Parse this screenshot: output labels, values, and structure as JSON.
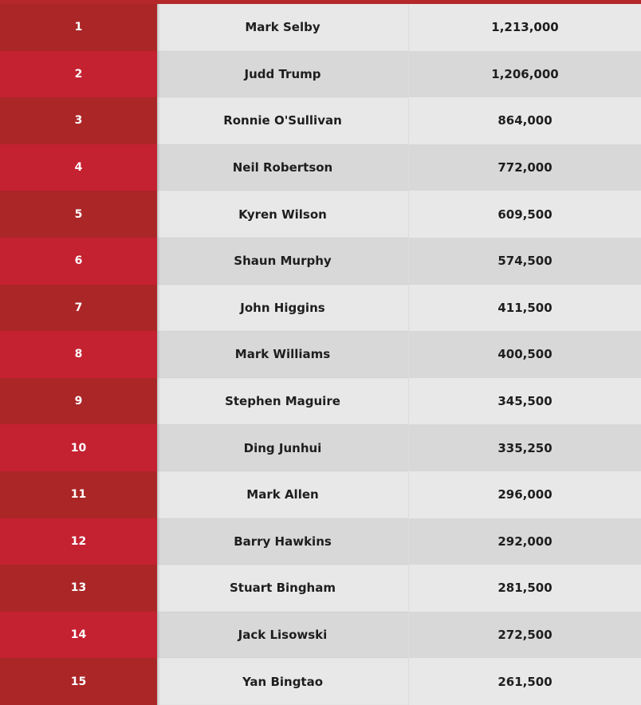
{
  "colors": {
    "rank_odd": "#ab2627",
    "rank_even": "#c42131",
    "row_odd": "#e8e8e8",
    "row_even": "#d8d8d8",
    "top_border": "#b5272a"
  },
  "rows": [
    {
      "rank": "1",
      "name": "Mark Selby",
      "prize": "1,213,000"
    },
    {
      "rank": "2",
      "name": "Judd Trump",
      "prize": "1,206,000"
    },
    {
      "rank": "3",
      "name": "Ronnie O'Sullivan",
      "prize": "864,000"
    },
    {
      "rank": "4",
      "name": "Neil Robertson",
      "prize": "772,000"
    },
    {
      "rank": "5",
      "name": "Kyren Wilson",
      "prize": "609,500"
    },
    {
      "rank": "6",
      "name": "Shaun Murphy",
      "prize": "574,500"
    },
    {
      "rank": "7",
      "name": "John Higgins",
      "prize": "411,500"
    },
    {
      "rank": "8",
      "name": "Mark Williams",
      "prize": "400,500"
    },
    {
      "rank": "9",
      "name": "Stephen Maguire",
      "prize": "345,500"
    },
    {
      "rank": "10",
      "name": "Ding Junhui",
      "prize": "335,250"
    },
    {
      "rank": "11",
      "name": "Mark Allen",
      "prize": "296,000"
    },
    {
      "rank": "12",
      "name": "Barry Hawkins",
      "prize": "292,000"
    },
    {
      "rank": "13",
      "name": "Stuart Bingham",
      "prize": "281,500"
    },
    {
      "rank": "14",
      "name": "Jack Lisowski",
      "prize": "272,500"
    },
    {
      "rank": "15",
      "name": "Yan Bingtao",
      "prize": "261,500"
    }
  ]
}
